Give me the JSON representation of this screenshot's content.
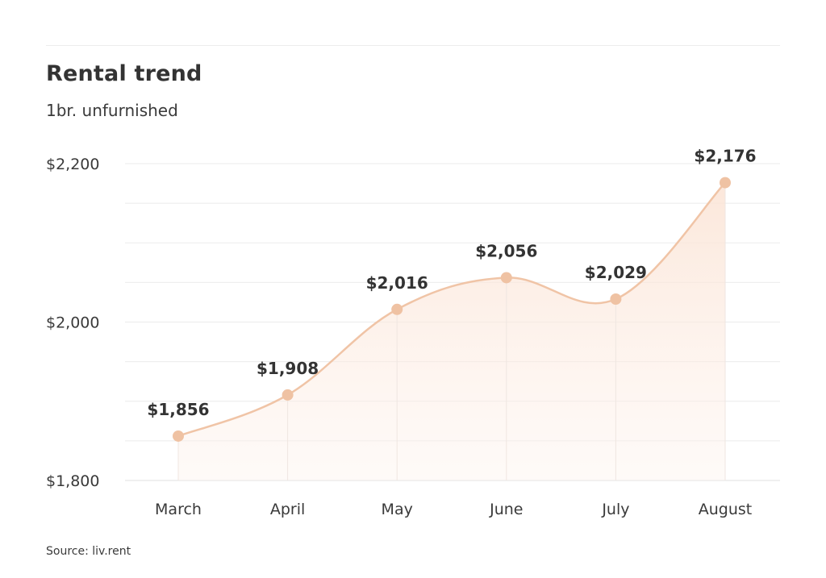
{
  "chart_data": {
    "type": "line",
    "title": "Rental trend",
    "subtitle": "1br. unfurnished",
    "categories": [
      "March",
      "April",
      "May",
      "June",
      "July",
      "August"
    ],
    "series": [
      {
        "values": [
          1856,
          1908,
          2016,
          2056,
          2029,
          2176
        ]
      }
    ],
    "data_labels": [
      "$1,856",
      "$1,908",
      "$2,016",
      "$2,056",
      "$2,029",
      "$2,176"
    ],
    "y_ticks": [
      {
        "value": 1800,
        "label": "$1,800"
      },
      {
        "value": 2000,
        "label": "$2,000"
      },
      {
        "value": 2200,
        "label": "$2,200"
      }
    ],
    "ylim": [
      1800,
      2200
    ],
    "grid": true,
    "legend": "none",
    "source": "Source: liv.rent",
    "colors": {
      "line": "#f0c4a6",
      "marker": "#efc2a3",
      "fill": "#fde9dd",
      "grid": "#ebebeb"
    }
  }
}
